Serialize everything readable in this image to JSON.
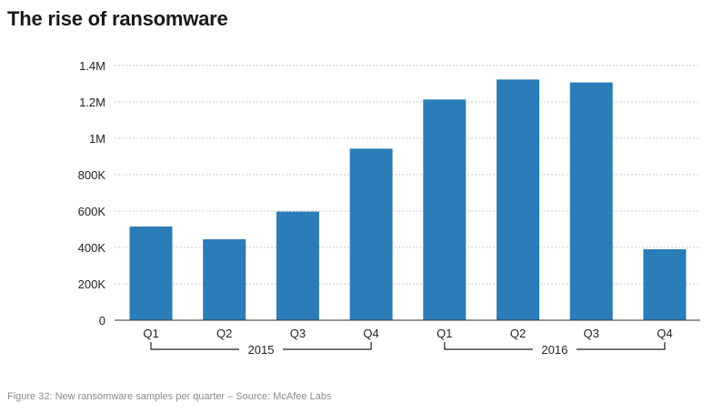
{
  "header": {
    "title": "The rise of ransomware"
  },
  "footer": {
    "caption": "Figure 32: New ransomware samples per quarter – Source: McAfee Labs"
  },
  "colors": {
    "bar": "#2a7db8",
    "grid": "#c8c8c8",
    "axis": "#333333"
  },
  "chart_data": {
    "type": "bar",
    "title": "The rise of ransomware",
    "categories": [
      "Q1",
      "Q2",
      "Q3",
      "Q4",
      "Q1",
      "Q2",
      "Q3",
      "Q4"
    ],
    "groups": [
      {
        "label": "2015",
        "categories": [
          "Q1",
          "Q2",
          "Q3",
          "Q4"
        ]
      },
      {
        "label": "2016",
        "categories": [
          "Q1",
          "Q2",
          "Q3",
          "Q4"
        ]
      }
    ],
    "values": [
      515000,
      445000,
      597000,
      943000,
      1213000,
      1323000,
      1307000,
      390000
    ],
    "ylim": [
      0,
      1400000
    ],
    "yticks": [
      0,
      200000,
      400000,
      600000,
      800000,
      1000000,
      1200000,
      1400000
    ],
    "ytick_labels": [
      "0",
      "200K",
      "400K",
      "600K",
      "800K",
      "1M",
      "1.2M",
      "1.4M"
    ],
    "grid": true,
    "xlabel": "",
    "ylabel": ""
  }
}
